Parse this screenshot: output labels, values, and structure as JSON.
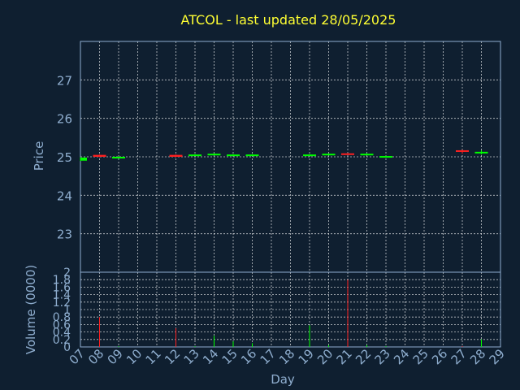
{
  "chart_data": {
    "type": "candlestick",
    "title": "ATCOL - last updated 28/05/2025",
    "xlabel": "Day",
    "ylabel": "Price",
    "volume_label": "Volume (0000)",
    "x_ticks": [
      "07",
      "08",
      "09",
      "10",
      "11",
      "12",
      "13",
      "14",
      "15",
      "16",
      "17",
      "18",
      "19",
      "20",
      "21",
      "22",
      "23",
      "24",
      "25",
      "26",
      "27",
      "28",
      "29"
    ],
    "price_ylim": [
      22,
      28
    ],
    "price_ticks": [
      "23",
      "24",
      "25",
      "26",
      "27"
    ],
    "volume_ylim": [
      0,
      2
    ],
    "volume_ticks": [
      "0",
      "0.2",
      "0.4",
      "0.6",
      "0.8",
      "1",
      "1.2",
      "1.4",
      "1.6",
      "1.8",
      "2"
    ],
    "up_color": "#00ff00",
    "down_color": "#ff2020",
    "grid": true,
    "candles": [
      {
        "day": 7,
        "open": 24.9,
        "close": 24.98,
        "high": 24.99,
        "low": 24.89,
        "volume": 0.0,
        "direction": "up"
      },
      {
        "day": 8,
        "open": 25.05,
        "close": 25.0,
        "high": 25.06,
        "low": 24.99,
        "volume": 0.8,
        "direction": "down"
      },
      {
        "day": 9,
        "open": 24.98,
        "close": 25.0,
        "high": 25.01,
        "low": 24.97,
        "volume": 0.02,
        "direction": "up"
      },
      {
        "day": 12,
        "open": 25.05,
        "close": 25.0,
        "high": 25.06,
        "low": 24.99,
        "volume": 0.5,
        "direction": "down"
      },
      {
        "day": 13,
        "open": 25.03,
        "close": 25.06,
        "high": 25.07,
        "low": 25.02,
        "volume": 0.02,
        "direction": "up"
      },
      {
        "day": 14,
        "open": 25.05,
        "close": 25.08,
        "high": 25.09,
        "low": 25.04,
        "volume": 0.3,
        "direction": "up"
      },
      {
        "day": 15,
        "open": 25.04,
        "close": 25.06,
        "high": 25.07,
        "low": 25.03,
        "volume": 0.15,
        "direction": "up"
      },
      {
        "day": 16,
        "open": 25.04,
        "close": 25.06,
        "high": 25.07,
        "low": 25.03,
        "volume": 0.1,
        "direction": "up"
      },
      {
        "day": 19,
        "open": 25.03,
        "close": 25.06,
        "high": 25.07,
        "low": 25.02,
        "volume": 0.58,
        "direction": "up"
      },
      {
        "day": 20,
        "open": 25.05,
        "close": 25.08,
        "high": 25.09,
        "low": 25.04,
        "volume": 0.05,
        "direction": "up"
      },
      {
        "day": 21,
        "open": 25.09,
        "close": 25.06,
        "high": 25.1,
        "low": 25.05,
        "volume": 1.8,
        "direction": "down"
      },
      {
        "day": 22,
        "open": 25.05,
        "close": 25.08,
        "high": 25.09,
        "low": 25.04,
        "volume": 0.05,
        "direction": "up"
      },
      {
        "day": 23,
        "open": 25.0,
        "close": 25.02,
        "high": 25.03,
        "low": 24.99,
        "volume": 0.02,
        "direction": "up"
      },
      {
        "day": 27,
        "open": 25.17,
        "close": 25.13,
        "high": 25.18,
        "low": 25.08,
        "volume": 0.02,
        "direction": "down"
      },
      {
        "day": 28,
        "open": 25.1,
        "close": 25.13,
        "high": 25.17,
        "low": 25.06,
        "volume": 0.2,
        "direction": "up"
      }
    ]
  }
}
